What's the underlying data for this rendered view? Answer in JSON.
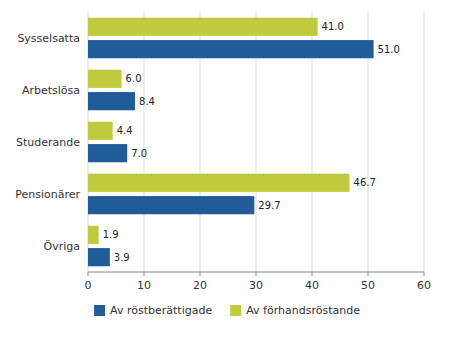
{
  "chart_data": {
    "type": "bar",
    "orientation": "horizontal",
    "categories": [
      "Sysselsatta",
      "Arbetslösa",
      "Studerande",
      "Pensionärer",
      "Övriga"
    ],
    "series": [
      {
        "name": "Av röstberättigade",
        "color": "#1F5C99",
        "values": [
          51.0,
          8.4,
          7.0,
          29.7,
          3.9
        ],
        "value_labels": [
          "51.0",
          "8.4",
          "7.0",
          "29.7",
          "3.9"
        ]
      },
      {
        "name": "Av förhandsröstande",
        "color": "#BFCA3D",
        "values": [
          41.0,
          6.0,
          4.4,
          46.7,
          1.9
        ],
        "value_labels": [
          "41.0",
          "6.0",
          "4.4",
          "46.7",
          "1.9"
        ]
      }
    ],
    "xlim": [
      0,
      60
    ],
    "xticks": [
      0,
      10,
      20,
      30,
      40,
      50,
      60
    ],
    "grid": true,
    "data_labels": true,
    "legend": "bottom"
  }
}
